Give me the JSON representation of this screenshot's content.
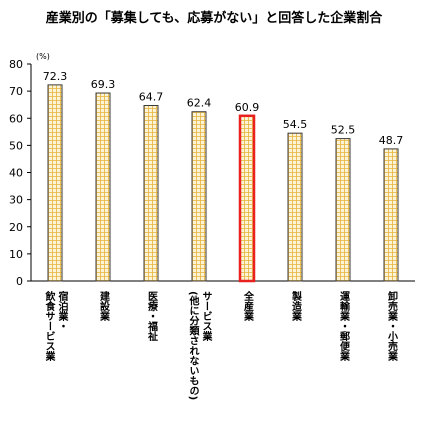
{
  "chart_data": {
    "type": "bar",
    "title": "産業別の「募集しても、応募がない」と回答した企業割合",
    "unit_label": "(%)",
    "xlabel": "",
    "ylabel": "",
    "ylim": [
      0,
      80
    ],
    "yticks": [
      0,
      10,
      20,
      30,
      40,
      50,
      60,
      70,
      80
    ],
    "grid": false,
    "legend": "none",
    "categories": [
      "飲食サービス業 宿泊業・",
      "建設業",
      "医療・福祉",
      "サービス業 (他に分類されないもの)",
      "全産業",
      "製造業",
      "運輸業・郵便業",
      "卸売業・小売業"
    ],
    "category_lines": [
      [
        "飲食サービス業",
        "宿泊業・"
      ],
      [
        "建設業"
      ],
      [
        "医療・福祉"
      ],
      [
        "(他に分類されないもの)",
        "サービス業"
      ],
      [
        "全産業"
      ],
      [
        "製造業"
      ],
      [
        "運輸業・郵便業"
      ],
      [
        "卸売業・小売業"
      ]
    ],
    "series": [
      {
        "values": [
          72.3,
          69.3,
          64.7,
          62.4,
          60.9,
          54.5,
          52.5,
          48.7
        ]
      }
    ],
    "data_labels": [
      "72.3",
      "69.3",
      "64.7",
      "62.4",
      "60.9",
      "54.5",
      "52.5",
      "48.7"
    ],
    "highlight_category": "全産業",
    "colors": {
      "bar_fill": "#fdf4d8",
      "bar_pattern": "#e6b43a",
      "bar_border": "#3a3a3a",
      "highlight_border": "#e8201e",
      "axis": "#000000"
    }
  }
}
